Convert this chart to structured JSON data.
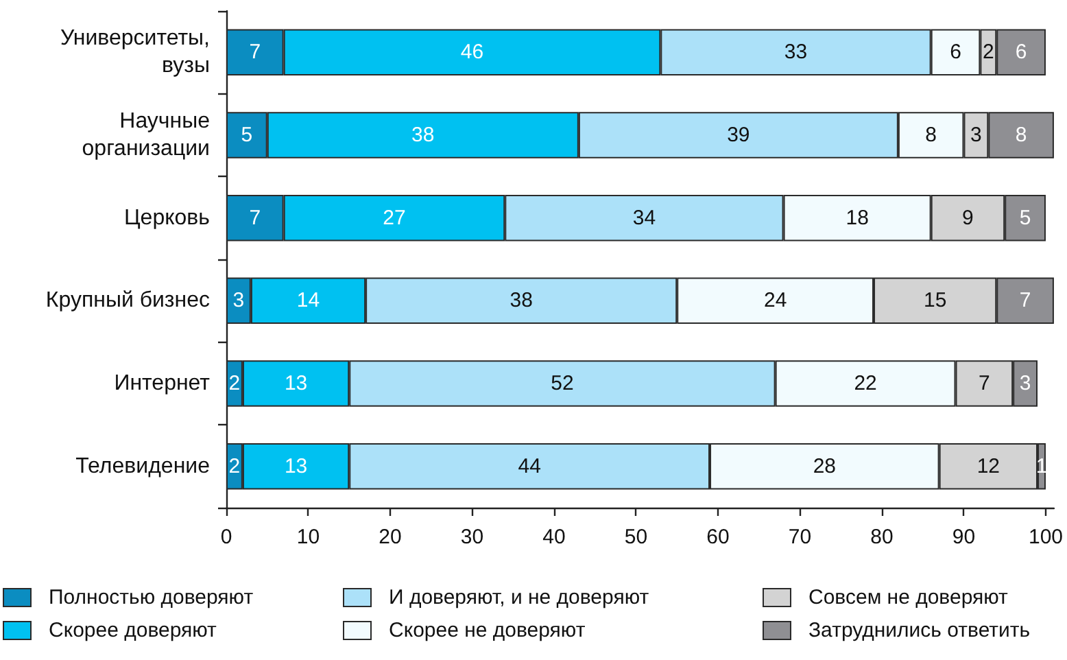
{
  "chart_data": {
    "type": "bar",
    "orientation": "horizontal",
    "stacked": true,
    "data_labels": true,
    "grid": false,
    "legend": "bottom",
    "categories": [
      "Университеты, вузы",
      "Научные организации",
      "Церковь",
      "Крупный бизнес",
      "Интернет",
      "Телевидение"
    ],
    "xlim": [
      0,
      101
    ],
    "xticks": [
      0,
      10,
      20,
      30,
      40,
      50,
      60,
      70,
      80,
      90,
      100
    ],
    "series": [
      {
        "name": "Полностью доверяют",
        "color": "#0b8dc1",
        "values": [
          7,
          5,
          7,
          3,
          2,
          2
        ]
      },
      {
        "name": "Скорее доверяют",
        "color": "#00c1f1",
        "values": [
          46,
          38,
          27,
          14,
          13,
          13
        ]
      },
      {
        "name": "И доверяют, и не доверяют",
        "color": "#ace1f9",
        "values": [
          33,
          39,
          34,
          38,
          52,
          44
        ]
      },
      {
        "name": "Скорее не доверяют",
        "color": "#f2fbfe",
        "values": [
          6,
          8,
          18,
          24,
          22,
          28
        ]
      },
      {
        "name": "Совсем не доверяют",
        "color": "#d3d3d3",
        "values": [
          2,
          3,
          9,
          15,
          7,
          12
        ]
      },
      {
        "name": "Затруднились ответить",
        "color": "#8f8f93",
        "values": [
          6,
          8,
          5,
          7,
          3,
          1
        ]
      }
    ]
  }
}
